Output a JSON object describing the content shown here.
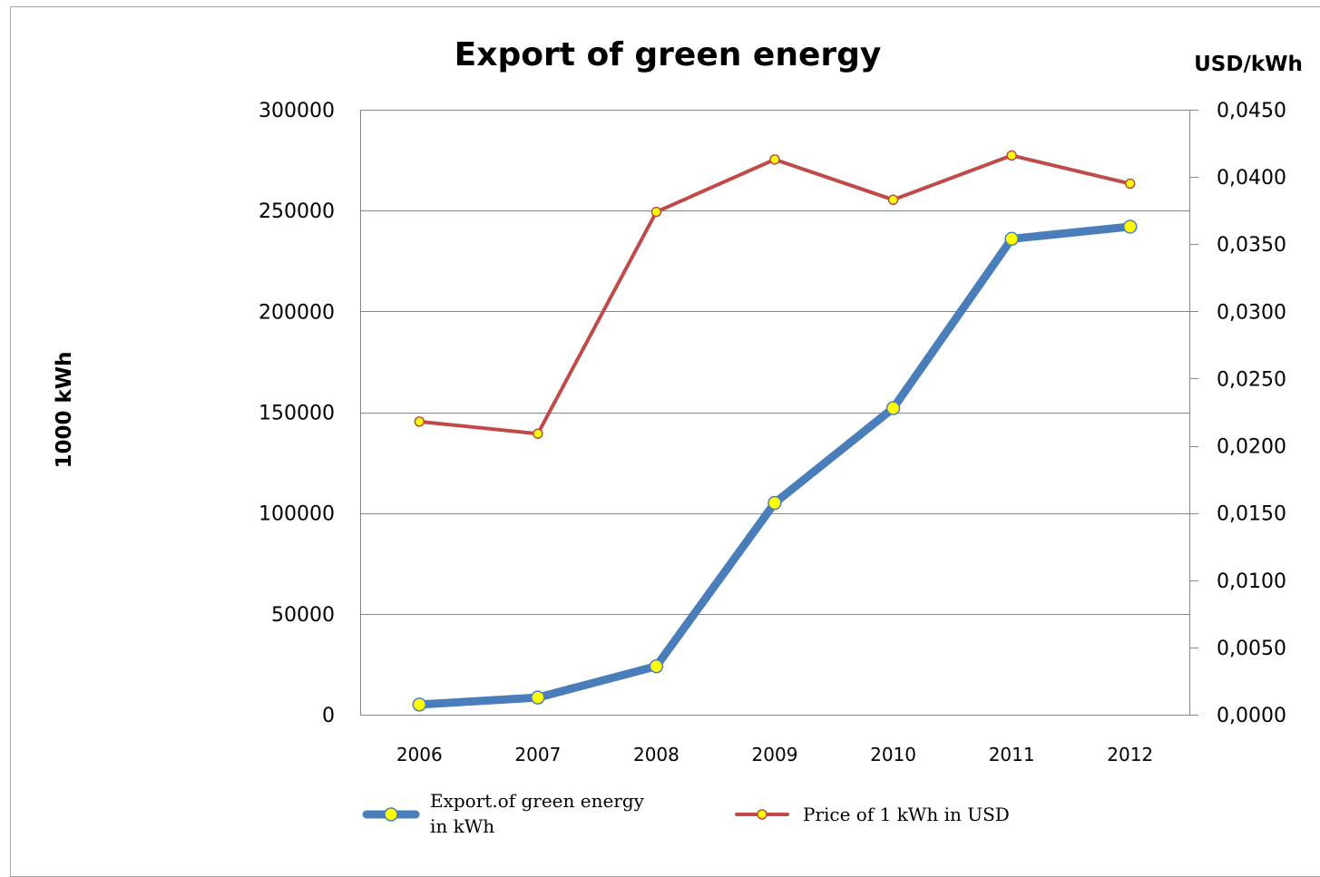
{
  "chart_data": {
    "type": "line",
    "title": "Export of green energy",
    "categories": [
      "2006",
      "2007",
      "2008",
      "2009",
      "2010",
      "2011",
      "2012"
    ],
    "series": [
      {
        "name": "Export.of green energy in kWh",
        "name_lines": [
          "Export.of green energy",
          "in kWh"
        ],
        "axis": "left",
        "color": "#4a7ebb",
        "marker_color": "#ffff00",
        "values": [
          5000,
          8500,
          24000,
          105000,
          152000,
          236000,
          242000
        ]
      },
      {
        "name": "Price of 1 kWh in USD",
        "name_lines": [
          "Price of 1 kWh in USD"
        ],
        "axis": "right",
        "color": "#be4b48",
        "marker_color": "#ffff00",
        "values": [
          0.0218,
          0.0209,
          0.0374,
          0.0413,
          0.0383,
          0.0416,
          0.0395
        ]
      }
    ],
    "y_left": {
      "label": "1000 kWh",
      "ylim": [
        0,
        300000
      ],
      "ticks": [
        0,
        50000,
        100000,
        150000,
        200000,
        250000,
        300000
      ],
      "tick_labels": [
        "0",
        "50000",
        "100000",
        "150000",
        "200000",
        "250000",
        "300000"
      ]
    },
    "y_right": {
      "label": "USD/kWh",
      "ylim": [
        0,
        0.045
      ],
      "ticks": [
        0,
        0.005,
        0.01,
        0.015,
        0.02,
        0.025,
        0.03,
        0.035,
        0.04,
        0.045
      ],
      "tick_labels": [
        "0,0000",
        "0,0050",
        "0,0100",
        "0,0150",
        "0,0200",
        "0,0250",
        "0,0300",
        "0,0350",
        "0,0400",
        "0,0450"
      ]
    },
    "grid": "horizontal major (left axis)",
    "legend_position": "bottom"
  }
}
